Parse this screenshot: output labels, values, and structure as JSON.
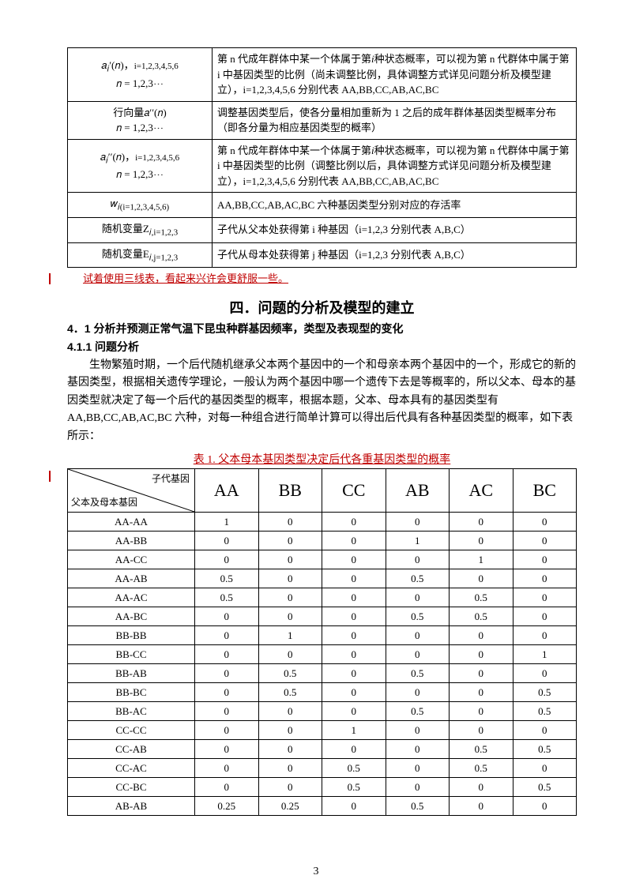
{
  "defs": [
    {
      "sym": "𝑎<sub>𝑖</sub>′(𝑛)，<span class='sub'>i=1,2,3,4,5,6</span><br>𝑛 = 1,2,3⋯",
      "desc": "第 n 代成年群体中某一个体属于第<i>i</i>种状态概率，可以视为第 n 代群体中属于第 i 中基因类型的比例（尚未调整比例，具体调整方式详见问题分析及模型建立），i=1,2,3,4,5,6 分别代表 AA,BB,CC,AB,AC,BC"
    },
    {
      "sym": "行向量𝑎′′(𝑛)<br>𝑛 = 1,2,3⋯",
      "desc": "调整基因类型后，使各分量相加重新为 1 之后的成年群体基因类型概率分布（即各分量为相应基因类型的概率）"
    },
    {
      "sym": "𝑎<sub>𝑖</sub>′′(𝑛)，<span class='sub'>i=1,2,3,4,5,6</span><br>𝑛 = 1,2,3⋯",
      "desc": "第 n 代成年群体中某一个体属于第<i>i</i>种状态概率，可以视为第 n 代群体中属于第 i 中基因类型的比例（调整比例以后，具体调整方式详见问题分析及模型建立），i=1,2,3,4,5,6 分别代表 AA,BB,CC,AB,AC,BC"
    },
    {
      "sym": "𝑤<sub>𝑖(i=1,2,3,4,5,6)</sub>",
      "desc": "AA,BB,CC,AB,AC,BC 六种基因类型分别对应的存活率"
    },
    {
      "sym": "随机变量Z<sub>𝑖,i=1,2,3</sub>",
      "desc": "子代从父本处获得第 i 种基因（i=1,2,3 分别代表 A,B,C）"
    },
    {
      "sym": "随机变量E<sub>𝑖,j=1,2,3</sub>",
      "desc": "子代从母本处获得第 j 种基因（i=1,2,3 分别代表 A,B,C）"
    }
  ],
  "note_red": "试着使用三线表，看起来兴许会更舒服一些。",
  "sect_title": "四．问题的分析及模型的建立",
  "sub41": "4．1 分析并预测正常气温下昆虫种群基因频率，类型及表现型的变化",
  "sub411": "4.1.1 问题分析",
  "para": "生物繁殖时期，一个后代随机继承父本两个基因中的一个和母亲本两个基因中的一个，形成它的新的基因类型，根据相关遗传学理论，一般认为两个基因中哪一个遗传下去是等概率的，所以父本、母本的基因类型就决定了每一个后代的基因类型的概率，根据本题，父本、母本具有的基因类型有 AA,BB,CC,AB,AC,BC 六种，对每一种组合进行简单计算可以得出后代具有各种基因类型的概率，如下表所示：",
  "caption": "表 1. 父本母本基因类型决定后代各重基因类型的概率",
  "diag_top": "子代基因",
  "diag_bot": "父本及母本基因",
  "cols": [
    "AA",
    "BB",
    "CC",
    "AB",
    "AC",
    "BC"
  ],
  "rows": [
    [
      "AA-AA",
      "1",
      "0",
      "0",
      "0",
      "0",
      "0"
    ],
    [
      "AA-BB",
      "0",
      "0",
      "0",
      "1",
      "0",
      "0"
    ],
    [
      "AA-CC",
      "0",
      "0",
      "0",
      "0",
      "1",
      "0"
    ],
    [
      "AA-AB",
      "0.5",
      "0",
      "0",
      "0.5",
      "0",
      "0"
    ],
    [
      "AA-AC",
      "0.5",
      "0",
      "0",
      "0",
      "0.5",
      "0"
    ],
    [
      "AA-BC",
      "0",
      "0",
      "0",
      "0.5",
      "0.5",
      "0"
    ],
    [
      "BB-BB",
      "0",
      "1",
      "0",
      "0",
      "0",
      "0"
    ],
    [
      "BB-CC",
      "0",
      "0",
      "0",
      "0",
      "0",
      "1"
    ],
    [
      "BB-AB",
      "0",
      "0.5",
      "0",
      "0.5",
      "0",
      "0"
    ],
    [
      "BB-BC",
      "0",
      "0.5",
      "0",
      "0",
      "0",
      "0.5"
    ],
    [
      "BB-AC",
      "0",
      "0",
      "0",
      "0.5",
      "0",
      "0.5"
    ],
    [
      "CC-CC",
      "0",
      "0",
      "1",
      "0",
      "0",
      "0"
    ],
    [
      "CC-AB",
      "0",
      "0",
      "0",
      "0",
      "0.5",
      "0.5"
    ],
    [
      "CC-AC",
      "0",
      "0",
      "0.5",
      "0",
      "0.5",
      "0"
    ],
    [
      "CC-BC",
      "0",
      "0",
      "0.5",
      "0",
      "0",
      "0.5"
    ],
    [
      "AB-AB",
      "0.25",
      "0.25",
      "0",
      "0.5",
      "0",
      "0"
    ]
  ],
  "page_number": "3",
  "red_mark_tops": [
    346,
    596
  ]
}
